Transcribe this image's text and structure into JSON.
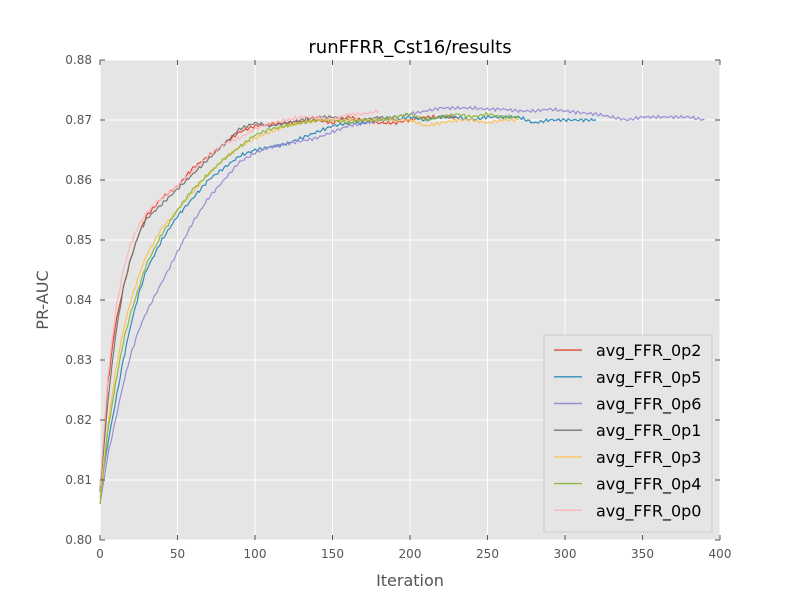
{
  "chart_data": {
    "type": "line",
    "title": "runFFRR_Cst16/results",
    "xlabel": "Iteration",
    "ylabel": "PR-AUC",
    "xlim": [
      0,
      400
    ],
    "ylim": [
      0.8,
      0.88
    ],
    "xticks": [
      "0",
      "50",
      "100",
      "150",
      "200",
      "250",
      "300",
      "350",
      "400"
    ],
    "yticks": [
      "0.80",
      "0.81",
      "0.82",
      "0.83",
      "0.84",
      "0.85",
      "0.86",
      "0.87",
      "0.88"
    ],
    "grid": true,
    "legend_position": "lower-right",
    "series": [
      {
        "name": "avg_FFR_0p2",
        "color": "#E24A33",
        "points": [
          [
            0,
            0.808
          ],
          [
            5,
            0.826
          ],
          [
            10,
            0.836
          ],
          [
            15,
            0.842
          ],
          [
            20,
            0.847
          ],
          [
            25,
            0.851
          ],
          [
            30,
            0.854
          ],
          [
            40,
            0.857
          ],
          [
            50,
            0.859
          ],
          [
            60,
            0.862
          ],
          [
            70,
            0.864
          ],
          [
            80,
            0.866
          ],
          [
            90,
            0.868
          ],
          [
            100,
            0.869
          ],
          [
            110,
            0.8693
          ],
          [
            120,
            0.8695
          ],
          [
            130,
            0.8697
          ],
          [
            140,
            0.87
          ],
          [
            150,
            0.8695
          ],
          [
            160,
            0.8705
          ],
          [
            170,
            0.87
          ],
          [
            180,
            0.8695
          ],
          [
            190,
            0.8695
          ],
          [
            200,
            0.87
          ],
          [
            210,
            0.8705
          ],
          [
            220,
            0.8705
          ],
          [
            230,
            0.8705
          ]
        ]
      },
      {
        "name": "avg_FFR_0p5",
        "color": "#348ABD",
        "points": [
          [
            0,
            0.808
          ],
          [
            5,
            0.816
          ],
          [
            10,
            0.823
          ],
          [
            15,
            0.83
          ],
          [
            20,
            0.836
          ],
          [
            25,
            0.841
          ],
          [
            30,
            0.845
          ],
          [
            40,
            0.85
          ],
          [
            50,
            0.854
          ],
          [
            60,
            0.857
          ],
          [
            70,
            0.86
          ],
          [
            80,
            0.862
          ],
          [
            90,
            0.864
          ],
          [
            100,
            0.865
          ],
          [
            110,
            0.8655
          ],
          [
            120,
            0.866
          ],
          [
            130,
            0.867
          ],
          [
            140,
            0.868
          ],
          [
            150,
            0.869
          ],
          [
            160,
            0.8695
          ],
          [
            170,
            0.8695
          ],
          [
            180,
            0.87
          ],
          [
            190,
            0.87
          ],
          [
            200,
            0.8705
          ],
          [
            210,
            0.87
          ],
          [
            220,
            0.8705
          ],
          [
            230,
            0.8705
          ],
          [
            240,
            0.87
          ],
          [
            250,
            0.8705
          ],
          [
            260,
            0.8705
          ],
          [
            270,
            0.8705
          ],
          [
            280,
            0.8695
          ],
          [
            290,
            0.87
          ],
          [
            300,
            0.87
          ],
          [
            310,
            0.87
          ],
          [
            320,
            0.87
          ]
        ]
      },
      {
        "name": "avg_FFR_0p6",
        "color": "#988ED5",
        "points": [
          [
            0,
            0.806
          ],
          [
            5,
            0.814
          ],
          [
            10,
            0.82
          ],
          [
            15,
            0.826
          ],
          [
            20,
            0.831
          ],
          [
            25,
            0.835
          ],
          [
            30,
            0.838
          ],
          [
            40,
            0.843
          ],
          [
            50,
            0.848
          ],
          [
            60,
            0.853
          ],
          [
            70,
            0.857
          ],
          [
            80,
            0.86
          ],
          [
            90,
            0.863
          ],
          [
            100,
            0.8645
          ],
          [
            110,
            0.8655
          ],
          [
            120,
            0.866
          ],
          [
            130,
            0.8665
          ],
          [
            140,
            0.867
          ],
          [
            150,
            0.868
          ],
          [
            160,
            0.869
          ],
          [
            170,
            0.8695
          ],
          [
            180,
            0.87
          ],
          [
            190,
            0.8705
          ],
          [
            200,
            0.871
          ],
          [
            210,
            0.8715
          ],
          [
            220,
            0.872
          ],
          [
            230,
            0.872
          ],
          [
            240,
            0.872
          ],
          [
            250,
            0.8718
          ],
          [
            260,
            0.8718
          ],
          [
            270,
            0.8715
          ],
          [
            280,
            0.8715
          ],
          [
            290,
            0.8718
          ],
          [
            300,
            0.8715
          ],
          [
            310,
            0.8712
          ],
          [
            320,
            0.871
          ],
          [
            330,
            0.8705
          ],
          [
            340,
            0.87
          ],
          [
            350,
            0.8705
          ],
          [
            360,
            0.8705
          ],
          [
            370,
            0.8705
          ],
          [
            380,
            0.8705
          ],
          [
            390,
            0.87
          ]
        ]
      },
      {
        "name": "avg_FFR_0p1",
        "color": "#777777",
        "points": [
          [
            0,
            0.808
          ],
          [
            5,
            0.823
          ],
          [
            10,
            0.834
          ],
          [
            15,
            0.842
          ],
          [
            20,
            0.847
          ],
          [
            25,
            0.851
          ],
          [
            30,
            0.8535
          ],
          [
            40,
            0.856
          ],
          [
            50,
            0.8585
          ],
          [
            60,
            0.861
          ],
          [
            70,
            0.8635
          ],
          [
            80,
            0.866
          ],
          [
            90,
            0.8685
          ],
          [
            100,
            0.8695
          ],
          [
            110,
            0.869
          ],
          [
            120,
            0.8695
          ],
          [
            130,
            0.87
          ],
          [
            140,
            0.8705
          ],
          [
            150,
            0.8705
          ],
          [
            160,
            0.87
          ],
          [
            170,
            0.87
          ],
          [
            180,
            0.8705
          ],
          [
            190,
            0.87
          ]
        ]
      },
      {
        "name": "avg_FFR_0p3",
        "color": "#FBC15E",
        "points": [
          [
            0,
            0.807
          ],
          [
            5,
            0.819
          ],
          [
            10,
            0.828
          ],
          [
            15,
            0.835
          ],
          [
            20,
            0.84
          ],
          [
            25,
            0.844
          ],
          [
            30,
            0.8475
          ],
          [
            40,
            0.852
          ],
          [
            50,
            0.855
          ],
          [
            60,
            0.858
          ],
          [
            70,
            0.861
          ],
          [
            80,
            0.8635
          ],
          [
            90,
            0.8655
          ],
          [
            100,
            0.867
          ],
          [
            110,
            0.868
          ],
          [
            120,
            0.869
          ],
          [
            130,
            0.8695
          ],
          [
            140,
            0.87
          ],
          [
            150,
            0.87
          ],
          [
            160,
            0.87
          ],
          [
            170,
            0.87
          ],
          [
            180,
            0.87
          ],
          [
            190,
            0.87
          ],
          [
            200,
            0.87
          ],
          [
            210,
            0.869
          ],
          [
            220,
            0.8695
          ],
          [
            230,
            0.87
          ],
          [
            240,
            0.87
          ],
          [
            250,
            0.8695
          ],
          [
            260,
            0.87
          ],
          [
            270,
            0.87
          ]
        ]
      },
      {
        "name": "avg_FFR_0p4",
        "color": "#8EBA42",
        "points": [
          [
            0,
            0.806
          ],
          [
            5,
            0.818
          ],
          [
            10,
            0.826
          ],
          [
            15,
            0.833
          ],
          [
            20,
            0.838
          ],
          [
            25,
            0.842
          ],
          [
            30,
            0.846
          ],
          [
            40,
            0.851
          ],
          [
            50,
            0.855
          ],
          [
            60,
            0.8585
          ],
          [
            70,
            0.861
          ],
          [
            80,
            0.8635
          ],
          [
            90,
            0.8655
          ],
          [
            100,
            0.8675
          ],
          [
            110,
            0.8685
          ],
          [
            120,
            0.869
          ],
          [
            130,
            0.8695
          ],
          [
            140,
            0.87
          ],
          [
            150,
            0.87
          ],
          [
            160,
            0.8695
          ],
          [
            170,
            0.87
          ],
          [
            180,
            0.87
          ],
          [
            190,
            0.8705
          ],
          [
            200,
            0.871
          ],
          [
            210,
            0.87
          ],
          [
            220,
            0.8705
          ],
          [
            230,
            0.871
          ],
          [
            240,
            0.8705
          ],
          [
            250,
            0.871
          ],
          [
            260,
            0.8705
          ],
          [
            270,
            0.8705
          ]
        ]
      },
      {
        "name": "avg_FFR_0p0",
        "color": "#FFB5B8",
        "points": [
          [
            0,
            0.809
          ],
          [
            5,
            0.827
          ],
          [
            10,
            0.838
          ],
          [
            15,
            0.845
          ],
          [
            20,
            0.8495
          ],
          [
            25,
            0.8525
          ],
          [
            30,
            0.8545
          ],
          [
            40,
            0.857
          ],
          [
            50,
            0.859
          ],
          [
            60,
            0.8615
          ],
          [
            70,
            0.864
          ],
          [
            80,
            0.866
          ],
          [
            90,
            0.867
          ],
          [
            100,
            0.8685
          ],
          [
            110,
            0.8695
          ],
          [
            120,
            0.87
          ],
          [
            130,
            0.8705
          ],
          [
            140,
            0.8705
          ],
          [
            150,
            0.87
          ],
          [
            160,
            0.871
          ],
          [
            170,
            0.871
          ],
          [
            180,
            0.8715
          ]
        ]
      }
    ]
  }
}
